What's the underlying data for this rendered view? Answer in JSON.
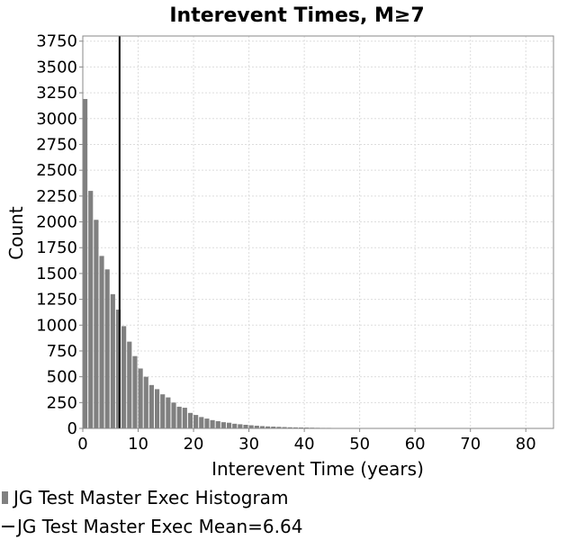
{
  "chart_data": {
    "type": "bar",
    "title": "Interevent Times, M≥7",
    "xlabel": "Interevent Time (years)",
    "ylabel": "Count",
    "xlim": [
      0,
      85
    ],
    "ylim": [
      0,
      3800
    ],
    "x_ticks": [
      0,
      10,
      20,
      30,
      40,
      50,
      60,
      70,
      80
    ],
    "y_ticks": [
      0,
      250,
      500,
      750,
      1000,
      1250,
      1500,
      1750,
      2000,
      2250,
      2500,
      2750,
      3000,
      3250,
      3500,
      3750
    ],
    "grid": true,
    "legend_position": "bottom",
    "bin_width": 1,
    "series": [
      {
        "name": "JG Test Master Exec Histogram",
        "type": "bar",
        "color": "#808080",
        "x": [
          0.5,
          1.5,
          2.5,
          3.5,
          4.5,
          5.5,
          6.5,
          7.5,
          8.5,
          9.5,
          10.5,
          11.5,
          12.5,
          13.5,
          14.5,
          15.5,
          16.5,
          17.5,
          18.5,
          19.5,
          20.5,
          21.5,
          22.5,
          23.5,
          24.5,
          25.5,
          26.5,
          27.5,
          28.5,
          29.5,
          30.5,
          31.5,
          32.5,
          33.5,
          34.5,
          35.5,
          36.5,
          37.5,
          38.5,
          39.5,
          40.5,
          41.5,
          42.5,
          43.5,
          44.5,
          45.5,
          46.5,
          47.5,
          48.5,
          49.5,
          50.5,
          51.5,
          52.5,
          53.5,
          54.5,
          55.5,
          56.5,
          57.5,
          58.5,
          59.5,
          60.5,
          61.5,
          62.5,
          63.5,
          64.5,
          65.5,
          66.5,
          67.5,
          68.5,
          69.5,
          70.5,
          71.5,
          72.5,
          73.5,
          74.5,
          75.5,
          76.5,
          77.5,
          78.5,
          79.5,
          80.5,
          81.5
        ],
        "values": [
          3190,
          2300,
          2020,
          1670,
          1540,
          1300,
          1150,
          990,
          840,
          700,
          580,
          500,
          420,
          380,
          330,
          300,
          250,
          210,
          200,
          150,
          130,
          110,
          95,
          80,
          70,
          60,
          55,
          45,
          40,
          35,
          30,
          26,
          22,
          19,
          17,
          15,
          13,
          11,
          10,
          9,
          8,
          7,
          6,
          5,
          5,
          4,
          4,
          3,
          3,
          3,
          2,
          2,
          2,
          2,
          2,
          1,
          1,
          1,
          1,
          1,
          1,
          1,
          1,
          1,
          1,
          1,
          1,
          1,
          1,
          1,
          1,
          1,
          1,
          1,
          1,
          1,
          1,
          1,
          1,
          1,
          1,
          1
        ]
      },
      {
        "name": "JG Test Master Exec Mean=6.64",
        "type": "vline",
        "color": "#000000",
        "x": 6.64
      }
    ]
  }
}
